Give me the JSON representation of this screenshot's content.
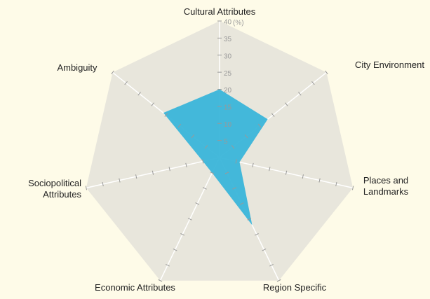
{
  "chart_data": {
    "type": "radar",
    "categories": [
      "Cultural Attributes",
      "City Environment",
      "Places and Landmarks",
      "Region Specific",
      "Economic Attributes",
      "Sociopolitical Attributes",
      "Ambiguity"
    ],
    "values": [
      20,
      18,
      6,
      22,
      5,
      5,
      21
    ],
    "color": "#3ab5d9",
    "rlim": [
      0,
      40
    ],
    "rticks": [
      5,
      10,
      15,
      20,
      25,
      30,
      35,
      40
    ],
    "unit_label": "(%)"
  }
}
